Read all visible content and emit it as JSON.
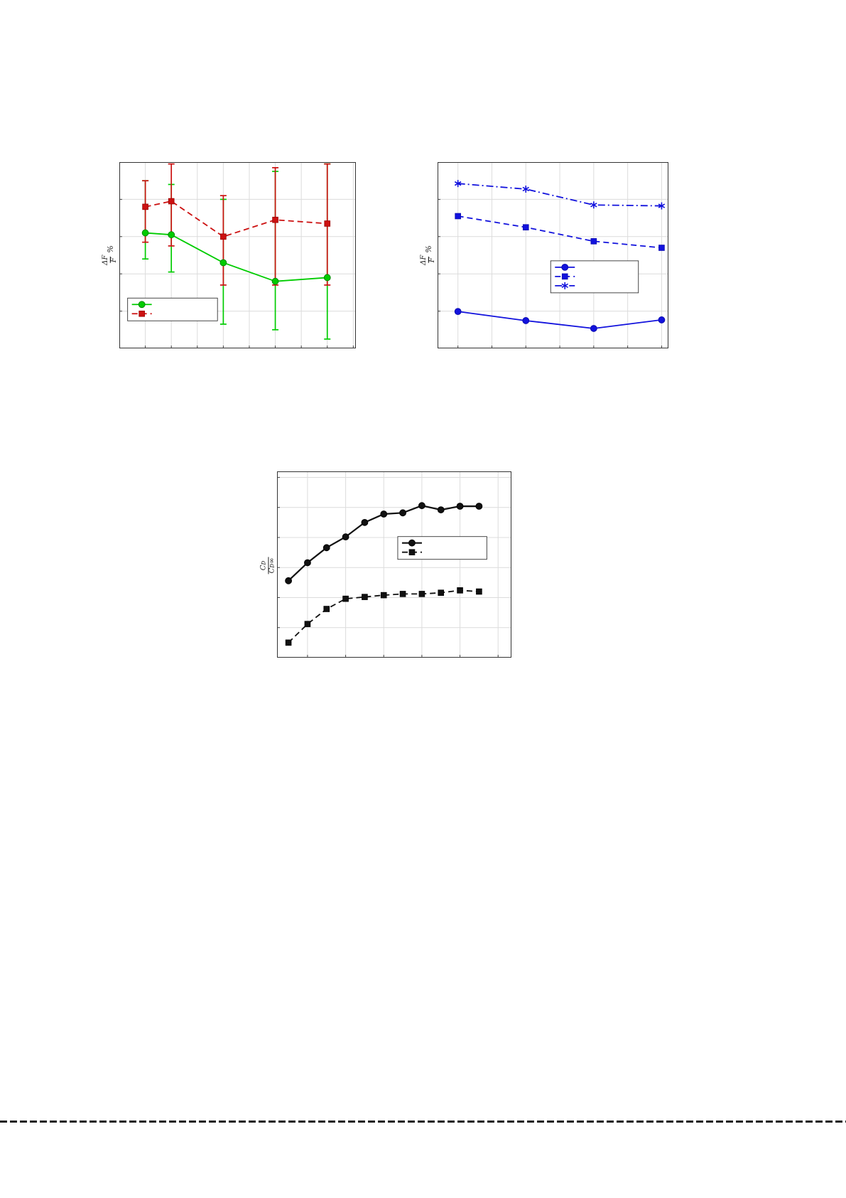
{
  "page": {
    "background": "#ffffff"
  },
  "footer_rule": {
    "style": "dashed"
  },
  "chart_data": [
    {
      "name": "flux-error-chart",
      "type": "line",
      "title": "",
      "ylabel": {
        "numerator": "ΔF",
        "denominator": "F",
        "suffix": "%"
      },
      "xlabel": "",
      "xlim": [
        0,
        4.55
      ],
      "ylim": [
        0,
        100
      ],
      "grid": {
        "on": true,
        "x_step": 0.5,
        "y_step": 20
      },
      "series": [
        {
          "label": "",
          "color": "#00cc00",
          "edge": "#008800",
          "line": "solid",
          "marker": "circle",
          "width": 1.8,
          "x": [
            0.5,
            1,
            2,
            3,
            4
          ],
          "y": [
            62,
            61,
            46,
            36,
            38
          ],
          "err_lo": [
            14,
            20,
            33,
            26,
            33
          ],
          "err_hi": [
            28,
            27,
            34,
            59,
            61
          ]
        },
        {
          "label": "",
          "color": "#cc1111",
          "edge": "#990000",
          "line": "dashed",
          "marker": "square",
          "width": 1.8,
          "x": [
            0.5,
            1,
            2,
            3,
            4
          ],
          "y": [
            76,
            79,
            60,
            69,
            67
          ],
          "err_lo": [
            19,
            24,
            26,
            35,
            33
          ],
          "err_hi": [
            14,
            20,
            22,
            28,
            32
          ]
        }
      ],
      "legend": {
        "position": "lower-left",
        "x": 0.035,
        "y": 0.73,
        "w": 0.38,
        "entries": [
          0,
          1
        ]
      }
    },
    {
      "name": "flux-comparison-chart",
      "type": "line",
      "title": "",
      "ylabel": {
        "numerator": "ΔF",
        "denominator": "F",
        "suffix": "%"
      },
      "xlabel": "",
      "xlim": [
        0.7,
        4.1
      ],
      "ylim": [
        0,
        100
      ],
      "grid": {
        "on": true,
        "x_step": 0.5,
        "y_step": 20
      },
      "series": [
        {
          "label": "",
          "color": "#1212dd",
          "edge": "#0b0bb0",
          "line": "solid",
          "marker": "circle",
          "width": 1.8,
          "x": [
            1,
            2,
            3,
            4
          ],
          "y": [
            19.8,
            14.9,
            10.7,
            15.3
          ]
        },
        {
          "label": "",
          "color": "#1212dd",
          "edge": "#0b0bb0",
          "line": "dashed",
          "marker": "square",
          "width": 1.8,
          "x": [
            1,
            2,
            3,
            4
          ],
          "y": [
            71,
            65,
            57.5,
            54
          ]
        },
        {
          "label": "",
          "color": "#1212dd",
          "edge": "#0b0bb0",
          "line": "dashdot",
          "marker": "asterisk",
          "width": 1.8,
          "x": [
            1,
            2,
            3,
            4
          ],
          "y": [
            88.5,
            85.5,
            77,
            76.5
          ]
        }
      ],
      "legend": {
        "position": "middle-right",
        "x": 0.49,
        "y": 0.53,
        "w": 0.38,
        "entries": [
          0,
          1,
          2
        ]
      }
    },
    {
      "name": "drag-convergence-chart",
      "type": "line",
      "title": "",
      "ylabel": {
        "numerator": "Cᴅ",
        "denominator": "Cᴅ∞",
        "suffix": ""
      },
      "xlabel": "",
      "xlim": [
        0.4,
        12.7
      ],
      "ylim": [
        0.75,
        1.06
      ],
      "grid": {
        "on": true,
        "x_step": 2,
        "y_step": 0.05
      },
      "series": [
        {
          "label": "",
          "color": "#111111",
          "edge": "#000000",
          "line": "solid",
          "marker": "circle",
          "width": 2.2,
          "x": [
            1,
            2,
            3,
            4,
            5,
            6,
            7,
            8,
            9,
            10,
            11
          ],
          "y": [
            0.878,
            0.908,
            0.933,
            0.951,
            0.975,
            0.989,
            0.991,
            1.003,
            0.996,
            1.002,
            1.002
          ]
        },
        {
          "label": "",
          "color": "#111111",
          "edge": "#000000",
          "line": "dashed",
          "marker": "square",
          "width": 1.8,
          "x": [
            1,
            2,
            3,
            4,
            5,
            6,
            7,
            8,
            9,
            10,
            11
          ],
          "y": [
            0.775,
            0.806,
            0.831,
            0.848,
            0.851,
            0.854,
            0.856,
            0.856,
            0.858,
            0.862,
            0.86
          ]
        }
      ],
      "legend": {
        "position": "middle-right",
        "x": 0.515,
        "y": 0.35,
        "w": 0.38,
        "entries": [
          0,
          1
        ]
      }
    }
  ]
}
